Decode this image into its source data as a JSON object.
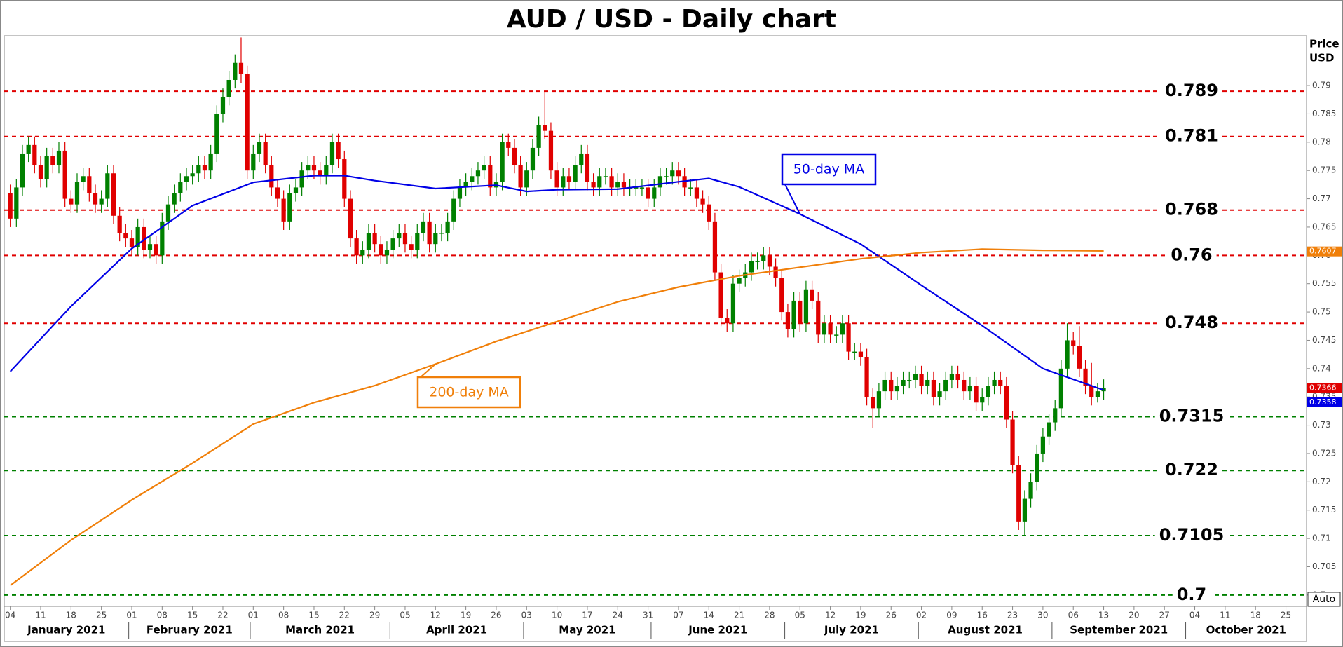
{
  "chart_data": {
    "type": "candlestick",
    "title": "AUD / USD - Daily chart",
    "ylabel": [
      "Price",
      "USD"
    ],
    "auto_button": "Auto",
    "xlim": [
      -1,
      213.4
    ],
    "ylim": [
      0.698,
      0.7988
    ],
    "yticks": [
      0.7,
      0.705,
      0.71,
      0.715,
      0.72,
      0.725,
      0.73,
      0.735,
      0.74,
      0.745,
      0.75,
      0.755,
      0.76,
      0.765,
      0.77,
      0.775,
      0.78,
      0.785,
      0.79
    ],
    "xticks": [
      {
        "value": 0,
        "label": "04"
      },
      {
        "value": 5,
        "label": "11"
      },
      {
        "value": 10,
        "label": "18"
      },
      {
        "value": 15,
        "label": "25"
      },
      {
        "value": 20,
        "label": "01"
      },
      {
        "value": 25,
        "label": "08"
      },
      {
        "value": 30,
        "label": "15"
      },
      {
        "value": 35,
        "label": "22"
      },
      {
        "value": 40,
        "label": "01"
      },
      {
        "value": 45,
        "label": "08"
      },
      {
        "value": 50,
        "label": "15"
      },
      {
        "value": 55,
        "label": "22"
      },
      {
        "value": 60,
        "label": "29"
      },
      {
        "value": 65,
        "label": "05"
      },
      {
        "value": 70,
        "label": "12"
      },
      {
        "value": 75,
        "label": "19"
      },
      {
        "value": 80,
        "label": "26"
      },
      {
        "value": 85,
        "label": "03"
      },
      {
        "value": 90,
        "label": "10"
      },
      {
        "value": 95,
        "label": "17"
      },
      {
        "value": 100,
        "label": "24"
      },
      {
        "value": 105,
        "label": "31"
      },
      {
        "value": 110,
        "label": "07"
      },
      {
        "value": 115,
        "label": "14"
      },
      {
        "value": 120,
        "label": "21"
      },
      {
        "value": 125,
        "label": "28"
      },
      {
        "value": 130,
        "label": "05"
      },
      {
        "value": 135,
        "label": "12"
      },
      {
        "value": 140,
        "label": "19"
      },
      {
        "value": 145,
        "label": "26"
      },
      {
        "value": 150,
        "label": "02"
      },
      {
        "value": 155,
        "label": "09"
      },
      {
        "value": 160,
        "label": "16"
      },
      {
        "value": 165,
        "label": "23"
      },
      {
        "value": 170,
        "label": "30"
      },
      {
        "value": 175,
        "label": "06"
      },
      {
        "value": 180,
        "label": "13"
      },
      {
        "value": 185,
        "label": "20"
      },
      {
        "value": 190,
        "label": "27"
      },
      {
        "value": 195,
        "label": "04"
      },
      {
        "value": 200,
        "label": "11"
      },
      {
        "value": 205,
        "label": "18"
      },
      {
        "value": 210,
        "label": "25"
      }
    ],
    "months": [
      {
        "label": "January 2021",
        "from": -1,
        "to": 19.5
      },
      {
        "label": "February 2021",
        "from": 19.5,
        "to": 39.5
      },
      {
        "label": "March 2021",
        "from": 39.5,
        "to": 62.5
      },
      {
        "label": "April 2021",
        "from": 62.5,
        "to": 84.5
      },
      {
        "label": "May 2021",
        "from": 84.5,
        "to": 105.5
      },
      {
        "label": "June 2021",
        "from": 105.5,
        "to": 127.5
      },
      {
        "label": "July 2021",
        "from": 127.5,
        "to": 149.5
      },
      {
        "label": "August 2021",
        "from": 149.5,
        "to": 171.5
      },
      {
        "label": "September 2021",
        "from": 171.5,
        "to": 193.5
      },
      {
        "label": "October 2021",
        "from": 193.5,
        "to": 213.4
      }
    ],
    "up_color": "#008000",
    "down_color": "#e00000",
    "open": [
      0.771,
      0.7665,
      0.772,
      0.778,
      0.7795,
      0.776,
      0.7735,
      0.7775,
      0.776,
      0.7785,
      0.77,
      0.769,
      0.773,
      0.774,
      0.771,
      0.769,
      0.77,
      0.7745,
      0.767,
      0.764,
      0.763,
      0.7615,
      0.765,
      0.761,
      0.762,
      0.76,
      0.766,
      0.769,
      0.771,
      0.773,
      0.774,
      0.7745,
      0.776,
      0.775,
      0.778,
      0.785,
      0.788,
      0.791,
      0.794,
      0.792,
      0.775,
      0.778,
      0.78,
      0.776,
      0.772,
      0.77,
      0.766,
      0.771,
      0.772,
      0.775,
      0.776,
      0.775,
      0.774,
      0.776,
      0.78,
      0.777,
      0.77,
      0.763,
      0.76,
      0.761,
      0.764,
      0.762,
      0.76,
      0.761,
      0.763,
      0.764,
      0.762,
      0.761,
      0.764,
      0.766,
      0.762,
      0.764,
      0.764,
      0.766,
      0.77,
      0.772,
      0.773,
      0.774,
      0.775,
      0.776,
      0.772,
      0.773,
      0.78,
      0.779,
      0.776,
      0.772,
      0.775,
      0.779,
      0.783,
      0.782,
      0.775,
      0.772,
      0.774,
      0.773,
      0.776,
      0.778,
      0.773,
      0.772,
      0.774,
      0.774,
      0.772,
      0.773,
      0.772,
      0.772,
      0.772,
      0.772,
      0.77,
      0.772,
      0.774,
      0.774,
      0.775,
      0.774,
      0.772,
      0.772,
      0.77,
      0.769,
      0.766,
      0.757,
      0.749,
      0.748,
      0.755,
      0.756,
      0.757,
      0.759,
      0.759,
      0.76,
      0.758,
      0.756,
      0.75,
      0.747,
      0.752,
      0.748,
      0.754,
      0.752,
      0.746,
      0.748,
      0.746,
      0.746,
      0.748,
      0.743,
      0.743,
      0.742,
      0.735,
      0.733,
      0.736,
      0.738,
      0.736,
      0.737,
      0.738,
      0.738,
      0.739,
      0.737,
      0.738,
      0.735,
      0.736,
      0.738,
      0.739,
      0.738,
      0.736,
      0.737,
      0.734,
      0.735,
      0.737,
      0.738,
      0.737,
      0.731,
      0.723,
      0.713,
      0.717,
      0.72,
      0.725,
      0.728,
      0.7305,
      0.733,
      0.74,
      0.745,
      0.744,
      0.74,
      0.737,
      0.735,
      0.736
    ],
    "high": [
      0.7725,
      0.7735,
      0.7795,
      0.781,
      0.781,
      0.7775,
      0.779,
      0.779,
      0.78,
      0.78,
      0.7715,
      0.7745,
      0.7755,
      0.7755,
      0.7725,
      0.7715,
      0.776,
      0.776,
      0.7685,
      0.7655,
      0.7645,
      0.7665,
      0.7665,
      0.7635,
      0.7635,
      0.7675,
      0.7705,
      0.7725,
      0.7745,
      0.7755,
      0.776,
      0.7775,
      0.7775,
      0.7795,
      0.7865,
      0.7895,
      0.7925,
      0.7955,
      0.7985,
      0.7935,
      0.7795,
      0.7815,
      0.7815,
      0.7775,
      0.7735,
      0.7715,
      0.7725,
      0.7735,
      0.7765,
      0.7775,
      0.7775,
      0.7765,
      0.7775,
      0.7815,
      0.7815,
      0.7785,
      0.7715,
      0.7645,
      0.7625,
      0.7655,
      0.7655,
      0.7635,
      0.7625,
      0.7645,
      0.7655,
      0.7655,
      0.7635,
      0.7655,
      0.7675,
      0.7675,
      0.7655,
      0.7655,
      0.7675,
      0.7715,
      0.7735,
      0.7745,
      0.7755,
      0.7765,
      0.7775,
      0.7775,
      0.7745,
      0.7815,
      0.7815,
      0.7805,
      0.7775,
      0.7765,
      0.7805,
      0.7845,
      0.789,
      0.7835,
      0.7765,
      0.7755,
      0.7755,
      0.7775,
      0.7795,
      0.7795,
      0.7745,
      0.7755,
      0.7755,
      0.7755,
      0.7745,
      0.7745,
      0.7735,
      0.7735,
      0.7735,
      0.7735,
      0.7735,
      0.7755,
      0.7755,
      0.7765,
      0.7765,
      0.7755,
      0.7735,
      0.7735,
      0.7715,
      0.7705,
      0.7675,
      0.7585,
      0.7505,
      0.7565,
      0.7575,
      0.7585,
      0.7605,
      0.7605,
      0.7615,
      0.7615,
      0.7595,
      0.7575,
      0.7515,
      0.7535,
      0.7535,
      0.7555,
      0.7555,
      0.7535,
      0.7495,
      0.7495,
      0.7475,
      0.7495,
      0.7495,
      0.7445,
      0.7445,
      0.7435,
      0.7365,
      0.7375,
      0.7395,
      0.7395,
      0.7385,
      0.7395,
      0.7395,
      0.7405,
      0.7405,
      0.7395,
      0.7395,
      0.7375,
      0.7395,
      0.7405,
      0.7405,
      0.7395,
      0.7385,
      0.7385,
      0.7365,
      0.7385,
      0.7395,
      0.7395,
      0.7385,
      0.7325,
      0.7245,
      0.7185,
      0.7215,
      0.7265,
      0.7295,
      0.732,
      0.7345,
      0.7415,
      0.748,
      0.7465,
      0.7475,
      0.7415,
      0.741,
      0.7375,
      0.7381
    ],
    "low": [
      0.765,
      0.765,
      0.7705,
      0.7765,
      0.7745,
      0.772,
      0.772,
      0.7745,
      0.7745,
      0.7685,
      0.7675,
      0.7675,
      0.7715,
      0.7695,
      0.7675,
      0.7675,
      0.7685,
      0.7655,
      0.7625,
      0.7615,
      0.76,
      0.76,
      0.7595,
      0.7595,
      0.7585,
      0.7585,
      0.7645,
      0.7675,
      0.7695,
      0.7715,
      0.7725,
      0.773,
      0.7735,
      0.7735,
      0.7765,
      0.7835,
      0.7865,
      0.7895,
      0.7905,
      0.7735,
      0.7735,
      0.7765,
      0.7745,
      0.7705,
      0.7685,
      0.7645,
      0.7645,
      0.7695,
      0.7705,
      0.7735,
      0.7735,
      0.7725,
      0.7725,
      0.7745,
      0.7755,
      0.7685,
      0.7615,
      0.7585,
      0.7585,
      0.7595,
      0.7605,
      0.7585,
      0.7585,
      0.7595,
      0.7615,
      0.7605,
      0.7595,
      0.7595,
      0.7625,
      0.7605,
      0.7605,
      0.7625,
      0.7625,
      0.7645,
      0.7685,
      0.7705,
      0.7715,
      0.7725,
      0.7735,
      0.7705,
      0.7705,
      0.7715,
      0.7775,
      0.7745,
      0.7705,
      0.7705,
      0.7735,
      0.7775,
      0.7805,
      0.7735,
      0.7705,
      0.7705,
      0.7715,
      0.7715,
      0.7745,
      0.7715,
      0.7705,
      0.7705,
      0.7725,
      0.7705,
      0.7705,
      0.7705,
      0.7705,
      0.7705,
      0.7705,
      0.7685,
      0.7685,
      0.7705,
      0.7725,
      0.7725,
      0.7725,
      0.7705,
      0.7705,
      0.7685,
      0.7675,
      0.7645,
      0.7555,
      0.7475,
      0.7465,
      0.7465,
      0.7535,
      0.7545,
      0.7555,
      0.7575,
      0.7575,
      0.7565,
      0.7545,
      0.7485,
      0.7455,
      0.7455,
      0.7465,
      0.7465,
      0.7505,
      0.7445,
      0.7445,
      0.7445,
      0.7445,
      0.7445,
      0.7415,
      0.7415,
      0.7405,
      0.7335,
      0.7295,
      0.7315,
      0.7345,
      0.7345,
      0.7345,
      0.7355,
      0.7365,
      0.7365,
      0.7355,
      0.7355,
      0.7335,
      0.7335,
      0.7345,
      0.7365,
      0.7365,
      0.7345,
      0.7345,
      0.7325,
      0.7325,
      0.7335,
      0.7355,
      0.7355,
      0.7295,
      0.7215,
      0.7115,
      0.7105,
      0.7155,
      0.7185,
      0.7235,
      0.7265,
      0.729,
      0.7315,
      0.7385,
      0.7425,
      0.7385,
      0.7355,
      0.7335,
      0.734,
      0.7345
    ],
    "close": [
      0.7665,
      0.772,
      0.778,
      0.7795,
      0.776,
      0.7735,
      0.7775,
      0.776,
      0.7785,
      0.77,
      0.769,
      0.773,
      0.774,
      0.771,
      0.769,
      0.77,
      0.7745,
      0.767,
      0.764,
      0.763,
      0.7615,
      0.765,
      0.761,
      0.762,
      0.76,
      0.766,
      0.769,
      0.771,
      0.773,
      0.774,
      0.7745,
      0.776,
      0.775,
      0.778,
      0.785,
      0.788,
      0.791,
      0.794,
      0.792,
      0.775,
      0.778,
      0.78,
      0.776,
      0.772,
      0.77,
      0.766,
      0.771,
      0.772,
      0.775,
      0.776,
      0.775,
      0.774,
      0.776,
      0.78,
      0.777,
      0.77,
      0.763,
      0.76,
      0.761,
      0.764,
      0.762,
      0.76,
      0.761,
      0.763,
      0.764,
      0.762,
      0.761,
      0.764,
      0.766,
      0.762,
      0.764,
      0.764,
      0.766,
      0.77,
      0.772,
      0.773,
      0.774,
      0.775,
      0.776,
      0.772,
      0.773,
      0.78,
      0.779,
      0.776,
      0.772,
      0.775,
      0.779,
      0.783,
      0.782,
      0.775,
      0.772,
      0.774,
      0.773,
      0.776,
      0.778,
      0.773,
      0.772,
      0.774,
      0.774,
      0.772,
      0.773,
      0.772,
      0.772,
      0.772,
      0.772,
      0.77,
      0.772,
      0.774,
      0.774,
      0.775,
      0.774,
      0.772,
      0.772,
      0.77,
      0.769,
      0.766,
      0.757,
      0.749,
      0.748,
      0.755,
      0.756,
      0.757,
      0.759,
      0.759,
      0.76,
      0.758,
      0.756,
      0.75,
      0.747,
      0.752,
      0.748,
      0.754,
      0.752,
      0.746,
      0.748,
      0.746,
      0.746,
      0.748,
      0.743,
      0.743,
      0.742,
      0.735,
      0.733,
      0.736,
      0.738,
      0.736,
      0.737,
      0.738,
      0.738,
      0.739,
      0.737,
      0.738,
      0.735,
      0.736,
      0.738,
      0.739,
      0.738,
      0.736,
      0.737,
      0.734,
      0.735,
      0.737,
      0.738,
      0.737,
      0.731,
      0.723,
      0.713,
      0.717,
      0.72,
      0.725,
      0.728,
      0.7305,
      0.733,
      0.74,
      0.745,
      0.744,
      0.74,
      0.737,
      0.735,
      0.736,
      0.7366
    ],
    "series": [
      {
        "name": "50-day MA",
        "color": "#0000e6",
        "x": [
          0,
          10,
          20,
          30,
          40,
          50,
          55,
          60,
          70,
          80,
          85,
          90,
          100,
          110,
          115,
          120,
          130,
          140,
          150,
          160,
          170,
          180
        ],
        "values": [
          0.7395,
          0.751,
          0.7612,
          0.7688,
          0.7729,
          0.7741,
          0.7741,
          0.7732,
          0.7718,
          0.7724,
          0.7713,
          0.7716,
          0.7717,
          0.773,
          0.7736,
          0.7721,
          0.7673,
          0.762,
          0.7547,
          0.7476,
          0.74,
          0.7362
        ]
      },
      {
        "name": "200-day MA",
        "color": "#f07f09",
        "x": [
          0,
          10,
          20,
          30,
          40,
          50,
          60,
          70,
          80,
          90,
          100,
          110,
          120,
          130,
          140,
          150,
          160,
          170,
          180
        ],
        "values": [
          0.7017,
          0.7097,
          0.7168,
          0.7233,
          0.7302,
          0.734,
          0.737,
          0.7408,
          0.7448,
          0.7483,
          0.7518,
          0.7544,
          0.7564,
          0.7579,
          0.7594,
          0.7605,
          0.7611,
          0.7609,
          0.7608
        ]
      }
    ],
    "levels": [
      {
        "value": 0.789,
        "color": "#e00000"
      },
      {
        "value": 0.781,
        "color": "#e00000"
      },
      {
        "value": 0.768,
        "color": "#e00000"
      },
      {
        "value": 0.76,
        "color": "#e00000"
      },
      {
        "value": 0.748,
        "color": "#e00000"
      },
      {
        "value": 0.7315,
        "color": "#008000"
      },
      {
        "value": 0.722,
        "color": "#008000"
      },
      {
        "value": 0.7105,
        "color": "#008000"
      },
      {
        "value": 0.7,
        "color": "#008000"
      }
    ],
    "price_tags": [
      {
        "value": 0.7607,
        "color": "#f07f09"
      },
      {
        "value": 0.7366,
        "color": "#e00000"
      },
      {
        "value": 0.7358,
        "color": "#0000e6"
      }
    ]
  }
}
